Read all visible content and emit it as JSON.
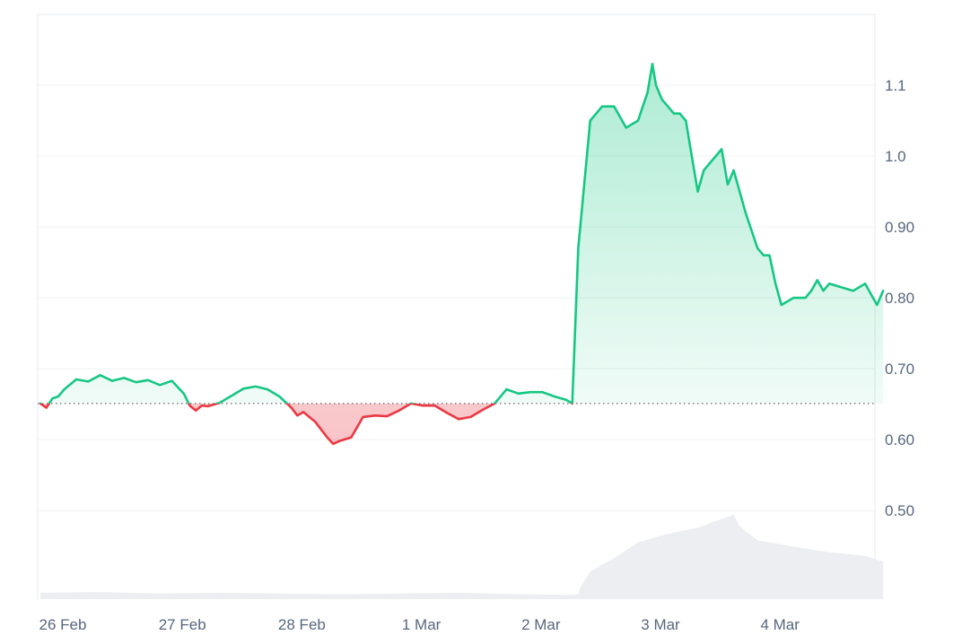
{
  "chart_data": {
    "type": "line",
    "title": "",
    "xlabel": "",
    "ylabel": "",
    "x_tick_labels": [
      "26 Feb",
      "27 Feb",
      "28 Feb",
      "1 Mar",
      "2 Mar",
      "3 Mar",
      "4 Mar"
    ],
    "y_tick_labels": [
      "1.1",
      "1.0",
      "0.90",
      "0.80",
      "0.70",
      "0.60",
      "0.50"
    ],
    "y_ticks": [
      1.1,
      1.0,
      0.9,
      0.8,
      0.7,
      0.6,
      0.5
    ],
    "ylim": [
      0.375,
      1.2
    ],
    "baseline": 0.651,
    "grid": true,
    "colors": {
      "up_line": "#16c784",
      "down_line": "#ea3943",
      "up_fill": "#16c784",
      "down_fill": "#ea3943",
      "volume": "#eceef2"
    },
    "series": [
      {
        "x": [
          0.0,
          0.05,
          0.1,
          0.15,
          0.2,
          0.3,
          0.4,
          0.5,
          0.6,
          0.7,
          0.8,
          0.9,
          1.0,
          1.1,
          1.2,
          1.25,
          1.3,
          1.35,
          1.4,
          1.5,
          1.6,
          1.7,
          1.8,
          1.9,
          2.0,
          2.05,
          2.1,
          2.15,
          2.2,
          2.3,
          2.4,
          2.45,
          2.5,
          2.6,
          2.7,
          2.8,
          2.9,
          3.0,
          3.1,
          3.2,
          3.3,
          3.4,
          3.5,
          3.6,
          3.7,
          3.8,
          3.9,
          4.0,
          4.1,
          4.2,
          4.3,
          4.4,
          4.45,
          4.5,
          4.6,
          4.7,
          4.8,
          4.9,
          5.0,
          5.02,
          5.04,
          5.06,
          5.08,
          5.1,
          5.12,
          5.15,
          5.2,
          5.25,
          5.3,
          5.35,
          5.4,
          5.45,
          5.5,
          5.55,
          5.6,
          5.65,
          5.7,
          5.75,
          5.8,
          5.9,
          6.0,
          6.05,
          6.1,
          6.15,
          6.2,
          6.3,
          6.4,
          6.45,
          6.5,
          6.55,
          6.6,
          6.7,
          6.8,
          6.9,
          6.95,
          7.0,
          7.05
        ],
        "values": [
          0.651,
          0.645,
          0.658,
          0.661,
          0.671,
          0.685,
          0.682,
          0.691,
          0.683,
          0.687,
          0.681,
          0.684,
          0.677,
          0.683,
          0.665,
          0.648,
          0.641,
          0.648,
          0.647,
          0.652,
          0.662,
          0.672,
          0.675,
          0.671,
          0.661,
          0.653,
          0.645,
          0.634,
          0.639,
          0.625,
          0.603,
          0.594,
          0.598,
          0.603,
          0.632,
          0.634,
          0.633,
          0.641,
          0.651,
          0.648,
          0.648,
          0.638,
          0.629,
          0.632,
          0.642,
          0.651,
          0.671,
          0.665,
          0.667,
          0.667,
          0.661,
          0.656,
          0.651,
          0.87,
          1.05,
          1.07,
          1.07,
          1.04,
          1.05,
          1.06,
          1.07,
          1.08,
          1.09,
          1.11,
          1.13,
          1.1,
          1.08,
          1.07,
          1.06,
          1.06,
          1.05,
          1.0,
          0.95,
          0.98,
          0.99,
          1.0,
          1.01,
          0.96,
          0.98,
          0.92,
          0.87,
          0.86,
          0.86,
          0.82,
          0.79,
          0.8,
          0.8,
          0.81,
          0.825,
          0.81,
          0.82,
          0.815,
          0.81,
          0.82,
          0.805,
          0.79,
          0.81
        ]
      },
      {
        "name": "",
        "type": "area",
        "x": [
          0.0,
          0.5,
          1.0,
          1.5,
          2.0,
          2.5,
          3.0,
          3.5,
          4.0,
          4.4,
          4.5,
          4.52,
          4.6,
          4.8,
          5.0,
          5.2,
          5.5,
          5.6,
          5.8,
          5.85,
          6.0,
          6.3,
          6.6,
          6.9,
          7.05
        ],
        "values": [
          0.384,
          0.385,
          0.383,
          0.384,
          0.383,
          0.382,
          0.383,
          0.384,
          0.382,
          0.381,
          0.382,
          0.393,
          0.414,
          0.433,
          0.455,
          0.465,
          0.476,
          0.482,
          0.494,
          0.478,
          0.458,
          0.449,
          0.441,
          0.436,
          0.428
        ]
      }
    ]
  }
}
